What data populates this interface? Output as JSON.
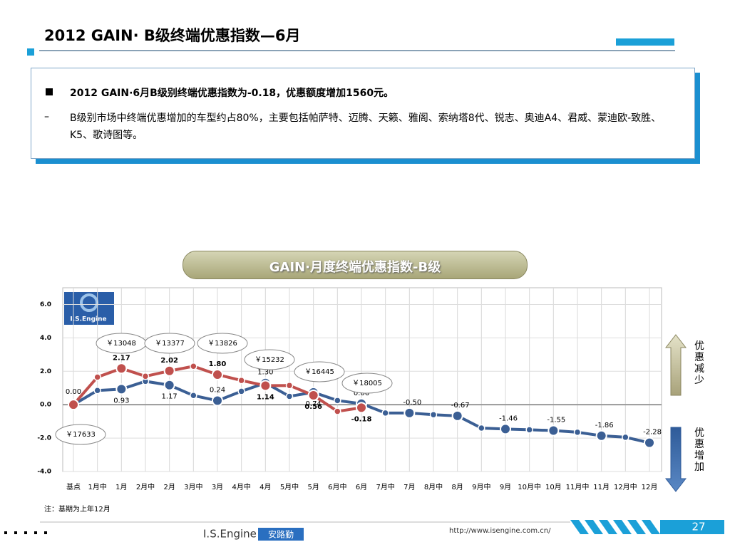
{
  "slide": {
    "title": "2012 GAIN· B级终端优惠指数—6月",
    "bullets": [
      "2012 GAIN·6月B级别终端优惠指数为-0.18，优惠额度增加1560元。",
      "B级别市场中终端优惠增加的车型约占80%，主要包括帕萨特、迈腾、天籁、雅阁、索纳塔8代、锐志、奥迪A4、君威、蒙迪欧-致胜、K5、歌诗图等。"
    ],
    "note": "注：基期为上年12月",
    "logo": "I.S.Engine",
    "brand": "I.S.Engine",
    "brand_cn": "安路勤",
    "url": "http://www.isengine.com.cn/",
    "page": "27"
  },
  "chart_data": {
    "type": "line",
    "title": "GAIN·月度终端优惠指数-B级",
    "categories": [
      "基点",
      "1月中",
      "1月",
      "2月中",
      "2月",
      "3月中",
      "3月",
      "4月中",
      "4月",
      "5月中",
      "5月",
      "6月中",
      "6月",
      "7月中",
      "7月",
      "8月中",
      "8月",
      "9月中",
      "9月",
      "10月中",
      "10月",
      "11月中",
      "11月",
      "12月中",
      "12月"
    ],
    "series": [
      {
        "color": "#3b5f94",
        "values": [
          0,
          0.85,
          0.93,
          1.4,
          1.17,
          0.55,
          0.24,
          0.8,
          1.3,
          0.5,
          0.74,
          0.25,
          0.06,
          -0.5,
          -0.5,
          -0.6,
          -0.67,
          -1.4,
          -1.46,
          -1.5,
          -1.55,
          -1.65,
          -1.86,
          -1.95,
          -2.28
        ],
        "value_labels": [
          "0.00",
          null,
          "0.93",
          null,
          "1.17",
          null,
          "0.24",
          null,
          "1.30",
          null,
          "0.74",
          null,
          "0.06",
          null,
          "-0.50",
          null,
          "-0.67",
          null,
          "-1.46",
          null,
          "-1.55",
          null,
          "-1.86",
          null,
          "-2.28"
        ]
      },
      {
        "color": "#c0504d",
        "values": [
          0,
          1.65,
          2.17,
          1.7,
          2.02,
          2.3,
          1.8,
          1.45,
          1.14,
          1.15,
          0.56,
          -0.4,
          -0.18,
          null,
          null,
          null,
          null,
          null,
          null,
          null,
          null,
          null,
          null,
          null,
          null
        ],
        "value_labels": [
          null,
          null,
          "2.17",
          null,
          "2.02",
          null,
          "1.80",
          null,
          "1.14",
          null,
          "0.56",
          null,
          "-0.18",
          null,
          null,
          null,
          null,
          null,
          null,
          null,
          null,
          null,
          null,
          null,
          null
        ]
      }
    ],
    "ylim": [
      -4,
      7
    ],
    "yticks": [
      {
        "value": -4,
        "label": "-4.0"
      },
      {
        "value": -2,
        "label": "-2.0"
      },
      {
        "value": 0,
        "label": "0.0"
      },
      {
        "value": 2,
        "label": "2.0"
      },
      {
        "value": 4,
        "label": "4.0"
      },
      {
        "value": 6,
        "label": "6.0"
      }
    ],
    "grid": true,
    "annotations": [
      "￥17633",
      "￥13048",
      "￥13377",
      "￥13826",
      "￥15232",
      "￥16445",
      "￥18005"
    ],
    "side_labels": [
      "优惠减少",
      "优惠增加"
    ]
  }
}
